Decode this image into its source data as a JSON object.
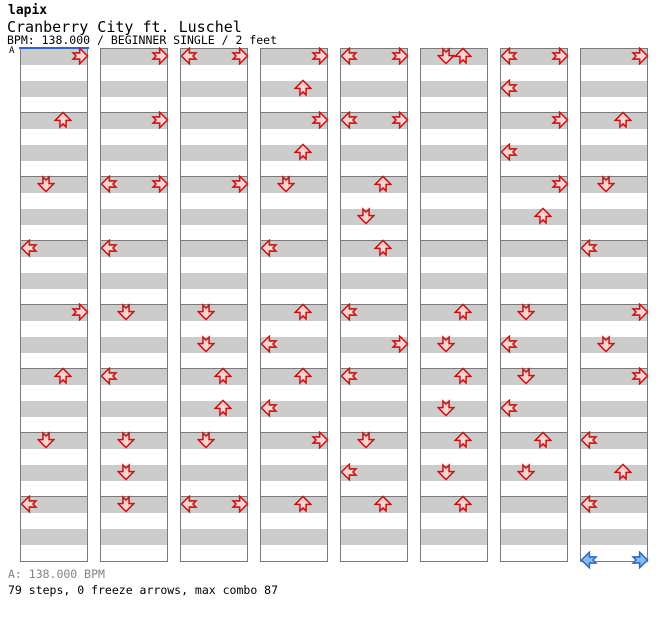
{
  "header": {
    "artist": "lapix",
    "title": "Cranberry City ft. Luschel",
    "info": "BPM: 138.000 / BEGINNER SINGLE / 2 feet"
  },
  "footer": {
    "bpm_marker": "A: 138.000 BPM",
    "summary": "79 steps, 0 freeze arrows, max combo 87"
  },
  "chart_data": {
    "type": "step_chart",
    "title": "Cranberry City ft. Luschel",
    "artist": "lapix",
    "bpm": 138.0,
    "difficulty": "BEGINNER SINGLE",
    "feet": 2,
    "steps": 79,
    "freeze_arrows": 0,
    "max_combo": 87,
    "columns": 8,
    "measures_per_column": 8,
    "beats_per_measure": 4,
    "lanes": [
      "L",
      "D",
      "U",
      "R"
    ],
    "marker_label": "A",
    "colors": {
      "stripe_gray": "#cccccc",
      "stripe_white": "#ffffff",
      "grid_border": "#7a7a7a",
      "bpm_line": "#3366cc",
      "quarter_stroke": "#cc1111",
      "quarter_fill": "#f9d6d6",
      "eighth_stroke": "#2a66cc",
      "eighth_fill": "#85bbf0"
    },
    "arrows": [
      [
        1,
        1,
        "R"
      ],
      [
        2,
        1,
        "U"
      ],
      [
        3,
        1,
        "D"
      ],
      [
        4,
        1,
        "L"
      ],
      [
        5,
        1,
        "R"
      ],
      [
        6,
        1,
        "U"
      ],
      [
        7,
        1,
        "D"
      ],
      [
        8,
        1,
        "L"
      ],
      [
        9,
        1,
        "R"
      ],
      [
        10,
        1,
        "R"
      ],
      [
        11,
        1,
        "L"
      ],
      [
        11,
        1,
        "R"
      ],
      [
        12,
        1,
        "L"
      ],
      [
        13,
        1,
        "D"
      ],
      [
        14,
        1,
        "L"
      ],
      [
        15,
        1,
        "D"
      ],
      [
        15,
        3,
        "D"
      ],
      [
        16,
        1,
        "D"
      ],
      [
        17,
        1,
        "L"
      ],
      [
        17,
        1,
        "R"
      ],
      [
        19,
        1,
        "R"
      ],
      [
        21,
        1,
        "D"
      ],
      [
        21,
        3,
        "D"
      ],
      [
        22,
        1,
        "U"
      ],
      [
        22,
        3,
        "U"
      ],
      [
        23,
        1,
        "D"
      ],
      [
        24,
        1,
        "L"
      ],
      [
        24,
        1,
        "R"
      ],
      [
        25,
        1,
        "R"
      ],
      [
        25,
        3,
        "U"
      ],
      [
        26,
        1,
        "R"
      ],
      [
        26,
        3,
        "U"
      ],
      [
        27,
        1,
        "D"
      ],
      [
        28,
        1,
        "L"
      ],
      [
        29,
        1,
        "U"
      ],
      [
        29,
        3,
        "L"
      ],
      [
        30,
        1,
        "U"
      ],
      [
        30,
        3,
        "L"
      ],
      [
        31,
        1,
        "R"
      ],
      [
        32,
        1,
        "U"
      ],
      [
        33,
        1,
        "L"
      ],
      [
        33,
        1,
        "R"
      ],
      [
        34,
        1,
        "L"
      ],
      [
        34,
        1,
        "R"
      ],
      [
        35,
        1,
        "U"
      ],
      [
        35,
        3,
        "D"
      ],
      [
        36,
        1,
        "U"
      ],
      [
        37,
        1,
        "L"
      ],
      [
        37,
        3,
        "R"
      ],
      [
        38,
        1,
        "L"
      ],
      [
        39,
        1,
        "D"
      ],
      [
        39,
        3,
        "L"
      ],
      [
        40,
        1,
        "U"
      ],
      [
        41,
        1,
        "D"
      ],
      [
        41,
        1,
        "U"
      ],
      [
        45,
        1,
        "U"
      ],
      [
        45,
        3,
        "D"
      ],
      [
        46,
        1,
        "U"
      ],
      [
        46,
        3,
        "D"
      ],
      [
        47,
        1,
        "U"
      ],
      [
        47,
        3,
        "D"
      ],
      [
        48,
        1,
        "U"
      ],
      [
        49,
        1,
        "L"
      ],
      [
        49,
        1,
        "R"
      ],
      [
        49,
        3,
        "L"
      ],
      [
        50,
        1,
        "R"
      ],
      [
        50,
        3,
        "L"
      ],
      [
        51,
        1,
        "R"
      ],
      [
        51,
        3,
        "U"
      ],
      [
        53,
        1,
        "D"
      ],
      [
        53,
        3,
        "L"
      ],
      [
        54,
        1,
        "D"
      ],
      [
        54,
        3,
        "L"
      ],
      [
        55,
        1,
        "U"
      ],
      [
        55,
        3,
        "D"
      ],
      [
        57,
        1,
        "R"
      ],
      [
        58,
        1,
        "U"
      ],
      [
        59,
        1,
        "D"
      ],
      [
        60,
        1,
        "L"
      ],
      [
        61,
        1,
        "R"
      ],
      [
        61,
        3,
        "D"
      ],
      [
        62,
        1,
        "R"
      ],
      [
        63,
        1,
        "L"
      ],
      [
        63,
        3,
        "U"
      ],
      [
        64,
        1,
        "L"
      ],
      [
        64,
        4.5,
        "L",
        "8th"
      ],
      [
        64,
        4.5,
        "R",
        "8th"
      ]
    ]
  }
}
